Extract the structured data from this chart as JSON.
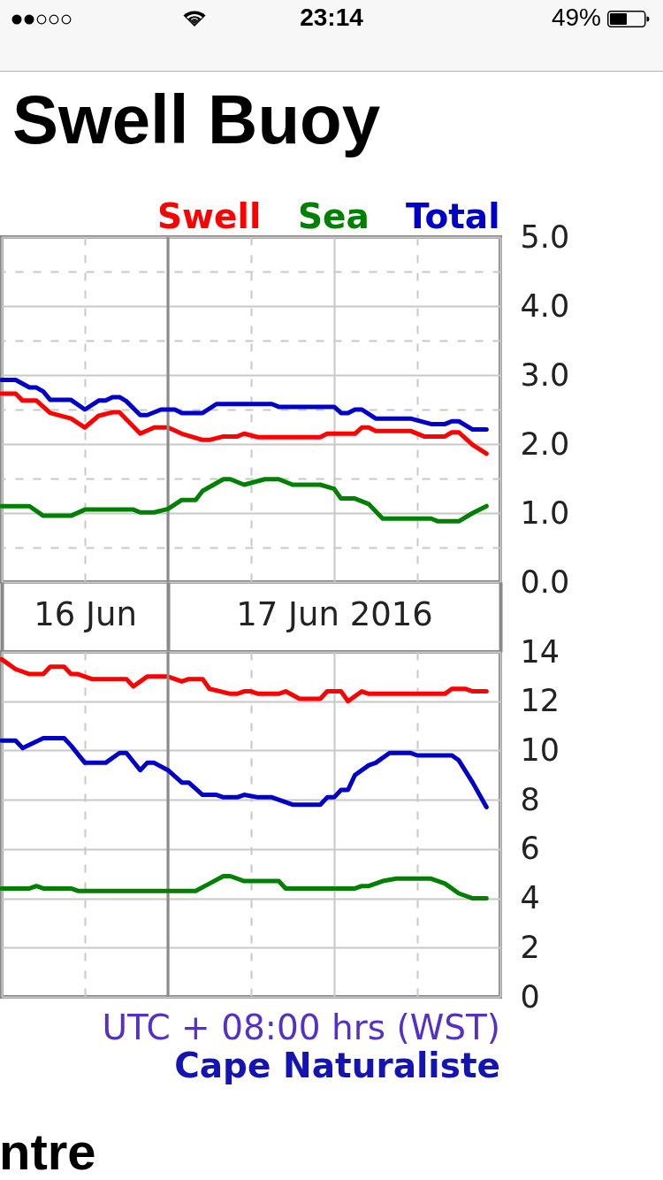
{
  "chart_data": [
    {
      "type": "line",
      "title": "Swell Buoy",
      "xlim": [
        "2016-06-16T12:00",
        "2016-06-18T00:00"
      ],
      "xticks": [
        {
          "value": "2016-06-16T12:00",
          "label": null
        },
        {
          "value": "2016-06-16T18:00",
          "label": "16 Jun"
        },
        {
          "value": "2016-06-17T00:00",
          "label": null
        },
        {
          "value": "2016-06-17T06:00",
          "label": null
        },
        {
          "value": "2016-06-17T12:00",
          "label": "17 Jun 2016"
        },
        {
          "value": "2016-06-17T18:00",
          "label": null
        },
        {
          "value": "2016-06-18T00:00",
          "label": null
        }
      ],
      "ylim": [
        0,
        5
      ],
      "yticks": [
        {
          "value": 0,
          "label": "0.0"
        },
        {
          "value": 0.5,
          "label": null
        },
        {
          "value": 1,
          "label": "1.0"
        },
        {
          "value": 1.5,
          "label": null
        },
        {
          "value": 2,
          "label": "2.0"
        },
        {
          "value": 2.5,
          "label": null
        },
        {
          "value": 3,
          "label": "3.0"
        },
        {
          "value": 3.5,
          "label": null
        },
        {
          "value": 4,
          "label": "4.0"
        },
        {
          "value": 4.5,
          "label": null
        },
        {
          "value": 5,
          "label": "5.0"
        }
      ],
      "grid": true,
      "legend": "top right",
      "annotations": [
        "23:14",
        "49%"
      ],
      "ref_lines": [
        {
          "axis": "x",
          "value": "2016-06-17T00:00",
          "color": "#8a8a8a"
        }
      ],
      "series": [
        {
          "name": "Swell",
          "color": "#ff0000",
          "x": [
            "2016-06-16T12:00",
            "2016-06-16T13:00",
            "2016-06-16T13:30",
            "2016-06-16T14:30",
            "2016-06-16T15:30",
            "2016-06-16T17:00",
            "2016-06-16T18:00",
            "2016-06-16T19:00",
            "2016-06-16T20:00",
            "2016-06-16T20:30",
            "2016-06-16T22:00",
            "2016-06-16T23:00",
            "2016-06-17T00:00",
            "2016-06-17T01:00",
            "2016-06-17T02:30",
            "2016-06-17T03:00",
            "2016-06-17T04:00",
            "2016-06-17T05:00",
            "2016-06-17T05:30",
            "2016-06-17T06:30",
            "2016-06-17T11:00",
            "2016-06-17T11:30",
            "2016-06-17T13:30",
            "2016-06-17T14:00",
            "2016-06-17T14:30",
            "2016-06-17T15:00",
            "2016-06-17T17:30",
            "2016-06-17T18:30",
            "2016-06-17T20:00",
            "2016-06-17T20:30",
            "2016-06-17T21:00",
            "2016-06-17T22:00",
            "2016-06-17T23:00"
          ],
          "values": [
            2.73,
            2.73,
            2.63,
            2.63,
            2.45,
            2.37,
            2.24,
            2.41,
            2.46,
            2.46,
            2.15,
            2.24,
            2.24,
            2.15,
            2.06,
            2.06,
            2.11,
            2.11,
            2.15,
            2.1,
            2.1,
            2.15,
            2.15,
            2.24,
            2.24,
            2.19,
            2.19,
            2.11,
            2.11,
            2.17,
            2.17,
            1.99,
            1.86
          ]
        },
        {
          "name": "Sea",
          "color": "#008000",
          "x": [
            "2016-06-16T12:00",
            "2016-06-16T14:00",
            "2016-06-16T15:00",
            "2016-06-16T17:00",
            "2016-06-16T18:00",
            "2016-06-16T21:30",
            "2016-06-16T22:00",
            "2016-06-16T23:00",
            "2016-06-17T00:00",
            "2016-06-17T01:00",
            "2016-06-17T02:00",
            "2016-06-17T02:30",
            "2016-06-17T04:00",
            "2016-06-17T04:30",
            "2016-06-17T05:30",
            "2016-06-17T07:00",
            "2016-06-17T08:00",
            "2016-06-17T09:00",
            "2016-06-17T11:00",
            "2016-06-17T12:00",
            "2016-06-17T12:30",
            "2016-06-17T13:30",
            "2016-06-17T14:30",
            "2016-06-17T15:30",
            "2016-06-17T19:00",
            "2016-06-17T19:30",
            "2016-06-17T21:00",
            "2016-06-17T22:00",
            "2016-06-17T23:00"
          ],
          "values": [
            1.1,
            1.1,
            0.96,
            0.96,
            1.05,
            1.05,
            1.01,
            1.01,
            1.06,
            1.19,
            1.19,
            1.32,
            1.49,
            1.49,
            1.41,
            1.49,
            1.49,
            1.41,
            1.41,
            1.35,
            1.21,
            1.21,
            1.13,
            0.92,
            0.92,
            0.88,
            0.88,
            1.0,
            1.1
          ]
        },
        {
          "name": "Total",
          "color": "#0000c8",
          "x": [
            "2016-06-16T12:00",
            "2016-06-16T13:00",
            "2016-06-16T14:00",
            "2016-06-16T14:30",
            "2016-06-16T15:00",
            "2016-06-16T15:30",
            "2016-06-16T17:00",
            "2016-06-16T18:00",
            "2016-06-16T19:00",
            "2016-06-16T19:30",
            "2016-06-16T20:00",
            "2016-06-16T20:30",
            "2016-06-16T21:00",
            "2016-06-16T22:00",
            "2016-06-16T22:30",
            "2016-06-16T23:30",
            "2016-06-17T00:30",
            "2016-06-17T01:00",
            "2016-06-17T02:30",
            "2016-06-17T03:30",
            "2016-06-17T07:30",
            "2016-06-17T08:00",
            "2016-06-17T12:00",
            "2016-06-17T12:30",
            "2016-06-17T13:00",
            "2016-06-17T13:30",
            "2016-06-17T14:00",
            "2016-06-17T15:00",
            "2016-06-17T17:30",
            "2016-06-17T19:00",
            "2016-06-17T20:00",
            "2016-06-17T20:30",
            "2016-06-17T21:00",
            "2016-06-17T22:00",
            "2016-06-17T23:00"
          ],
          "values": [
            2.93,
            2.93,
            2.82,
            2.82,
            2.76,
            2.64,
            2.64,
            2.5,
            2.63,
            2.63,
            2.68,
            2.68,
            2.62,
            2.42,
            2.42,
            2.5,
            2.5,
            2.45,
            2.45,
            2.58,
            2.58,
            2.54,
            2.54,
            2.45,
            2.45,
            2.5,
            2.5,
            2.37,
            2.37,
            2.29,
            2.29,
            2.33,
            2.33,
            2.21,
            2.21
          ]
        }
      ]
    },
    {
      "type": "line",
      "xlim": [
        "2016-06-16T12:00",
        "2016-06-18T00:00"
      ],
      "xticks": [
        {
          "value": "2016-06-16T12:00",
          "label": null
        },
        {
          "value": "2016-06-16T18:00",
          "label": null
        },
        {
          "value": "2016-06-17T00:00",
          "label": null
        },
        {
          "value": "2016-06-17T06:00",
          "label": null
        },
        {
          "value": "2016-06-17T12:00",
          "label": null
        },
        {
          "value": "2016-06-17T18:00",
          "label": null
        },
        {
          "value": "2016-06-18T00:00",
          "label": null
        }
      ],
      "ylim": [
        0,
        14
      ],
      "yticks": [
        0,
        2,
        4,
        6,
        8,
        10,
        12,
        14
      ],
      "grid": true,
      "tick_labels": "y",
      "annotations": [
        "UTC + 08:00 hrs (WST)",
        "Cape Naturaliste",
        "ntre"
      ],
      "ref_lines": [
        {
          "axis": "x",
          "value": "2016-06-17T00:00",
          "color": "#8a8a8a"
        }
      ],
      "series": [
        {
          "color": "#ff0000",
          "x": [
            "2016-06-16T12:00",
            "2016-06-16T13:00",
            "2016-06-16T14:00",
            "2016-06-16T15:00",
            "2016-06-16T15:30",
            "2016-06-16T16:30",
            "2016-06-16T17:00",
            "2016-06-16T17:30",
            "2016-06-16T18:30",
            "2016-06-16T21:00",
            "2016-06-16T21:30",
            "2016-06-16T22:30",
            "2016-06-17T00:00",
            "2016-06-17T01:00",
            "2016-06-17T01:30",
            "2016-06-17T02:30",
            "2016-06-17T03:00",
            "2016-06-17T04:30",
            "2016-06-17T05:00",
            "2016-06-17T05:30",
            "2016-06-17T06:00",
            "2016-06-17T06:30",
            "2016-06-17T08:00",
            "2016-06-17T08:30",
            "2016-06-17T09:30",
            "2016-06-17T11:00",
            "2016-06-17T11:30",
            "2016-06-17T12:30",
            "2016-06-17T13:00",
            "2016-06-17T14:00",
            "2016-06-17T14:30",
            "2016-06-17T20:00",
            "2016-06-17T20:30",
            "2016-06-17T21:30",
            "2016-06-17T22:00",
            "2016-06-17T23:00"
          ],
          "values": [
            13.7,
            13.3,
            13.1,
            13.1,
            13.4,
            13.4,
            13.1,
            13.1,
            12.9,
            12.9,
            12.6,
            13.0,
            13.0,
            12.8,
            12.9,
            12.9,
            12.5,
            12.3,
            12.3,
            12.4,
            12.4,
            12.3,
            12.3,
            12.4,
            12.1,
            12.1,
            12.4,
            12.4,
            12.0,
            12.4,
            12.3,
            12.3,
            12.5,
            12.5,
            12.4,
            12.4
          ]
        },
        {
          "color": "#008000",
          "x": [
            "2016-06-16T12:00",
            "2016-06-16T14:00",
            "2016-06-16T14:30",
            "2016-06-16T15:00",
            "2016-06-16T17:00",
            "2016-06-16T17:30",
            "2016-06-17T02:00",
            "2016-06-17T03:00",
            "2016-06-17T04:00",
            "2016-06-17T04:30",
            "2016-06-17T05:30",
            "2016-06-17T08:00",
            "2016-06-17T08:30",
            "2016-06-17T13:30",
            "2016-06-17T14:00",
            "2016-06-17T14:30",
            "2016-06-17T15:30",
            "2016-06-17T16:30",
            "2016-06-17T19:00",
            "2016-06-17T20:00",
            "2016-06-17T21:00",
            "2016-06-17T22:00",
            "2016-06-17T23:00"
          ],
          "values": [
            4.4,
            4.4,
            4.5,
            4.4,
            4.4,
            4.3,
            4.3,
            4.6,
            4.9,
            4.9,
            4.7,
            4.7,
            4.4,
            4.4,
            4.5,
            4.5,
            4.7,
            4.8,
            4.8,
            4.6,
            4.2,
            4.0,
            4.0
          ]
        },
        {
          "color": "#0000c8",
          "x": [
            "2016-06-16T12:00",
            "2016-06-16T13:00",
            "2016-06-16T13:30",
            "2016-06-16T15:00",
            "2016-06-16T16:30",
            "2016-06-16T17:00",
            "2016-06-16T18:00",
            "2016-06-16T19:30",
            "2016-06-16T20:30",
            "2016-06-16T21:00",
            "2016-06-16T22:00",
            "2016-06-16T22:30",
            "2016-06-16T23:00",
            "2016-06-17T00:00",
            "2016-06-17T01:00",
            "2016-06-17T01:30",
            "2016-06-17T02:30",
            "2016-06-17T03:30",
            "2016-06-17T04:00",
            "2016-06-17T05:00",
            "2016-06-17T05:30",
            "2016-06-17T06:30",
            "2016-06-17T07:30",
            "2016-06-17T08:30",
            "2016-06-17T09:00",
            "2016-06-17T11:00",
            "2016-06-17T11:30",
            "2016-06-17T12:00",
            "2016-06-17T12:30",
            "2016-06-17T13:00",
            "2016-06-17T13:30",
            "2016-06-17T14:30",
            "2016-06-17T15:00",
            "2016-06-17T16:00",
            "2016-06-17T17:30",
            "2016-06-17T18:00",
            "2016-06-17T20:30",
            "2016-06-17T21:00",
            "2016-06-17T22:00",
            "2016-06-17T23:00"
          ],
          "values": [
            10.4,
            10.4,
            10.1,
            10.5,
            10.5,
            10.2,
            9.5,
            9.5,
            9.9,
            9.9,
            9.2,
            9.5,
            9.5,
            9.2,
            8.7,
            8.7,
            8.2,
            8.2,
            8.1,
            8.1,
            8.2,
            8.1,
            8.1,
            7.9,
            7.8,
            7.8,
            8.1,
            8.1,
            8.4,
            8.4,
            9.0,
            9.4,
            9.5,
            9.9,
            9.9,
            9.8,
            9.8,
            9.6,
            8.7,
            7.7
          ]
        }
      ]
    }
  ]
}
